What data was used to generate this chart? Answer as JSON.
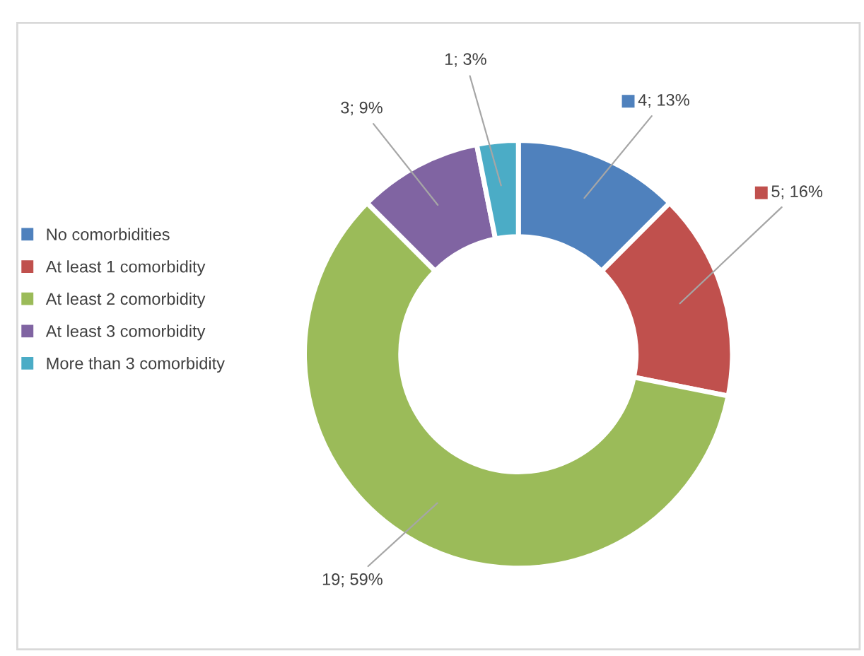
{
  "chart_data": {
    "type": "donut",
    "categories": [
      "No comorbidities",
      "At least 1 comorbidity",
      "At least 2 comorbidity",
      "At least 3 comorbidity",
      "More than 3 comorbidity"
    ],
    "values": [
      4,
      5,
      19,
      3,
      1
    ],
    "colors": [
      "#4f81bd",
      "#c0504d",
      "#9bbb59",
      "#8064a2",
      "#4bacc6"
    ],
    "value_labels": [
      "4; 13%",
      "5; 16%",
      "19; 59%",
      "3; 9%",
      "1; 3%"
    ],
    "legend": "left"
  }
}
